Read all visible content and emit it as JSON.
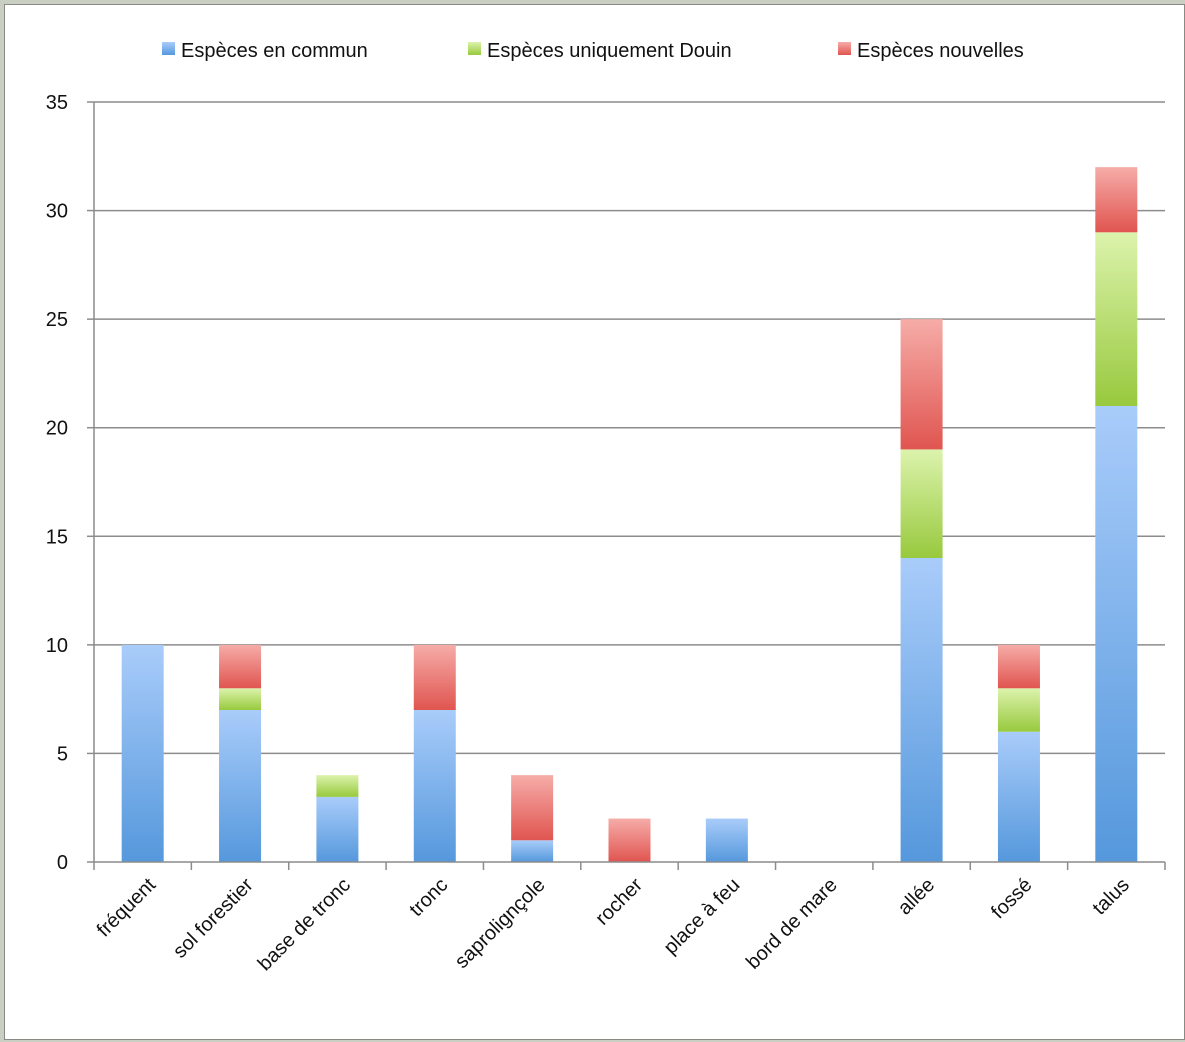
{
  "chart_data": {
    "type": "bar",
    "stacked": true,
    "categories": [
      "fréquent",
      "sol forestier",
      "base de tronc",
      "tronc",
      "saprolignçole",
      "rocher",
      "place à feu",
      "bord de mare",
      "allée",
      "fossé",
      "talus"
    ],
    "series": [
      {
        "name": "Espèces en commun",
        "values": [
          10,
          7,
          3,
          7,
          1,
          0,
          2,
          0,
          14,
          6,
          21
        ],
        "color": "#6aa6e8"
      },
      {
        "name": "Espèces uniquement Douin",
        "values": [
          0,
          1,
          1,
          0,
          0,
          0,
          0,
          0,
          5,
          2,
          8
        ],
        "color": "#b4dc6e"
      },
      {
        "name": "Espèces nouvelles",
        "values": [
          0,
          2,
          0,
          3,
          3,
          2,
          0,
          0,
          6,
          2,
          3
        ],
        "color": "#ec7470"
      }
    ],
    "ylim": [
      0,
      35
    ],
    "yticks": [
      0,
      5,
      10,
      15,
      20,
      25,
      30,
      35
    ],
    "grid": true,
    "legend": "top"
  }
}
